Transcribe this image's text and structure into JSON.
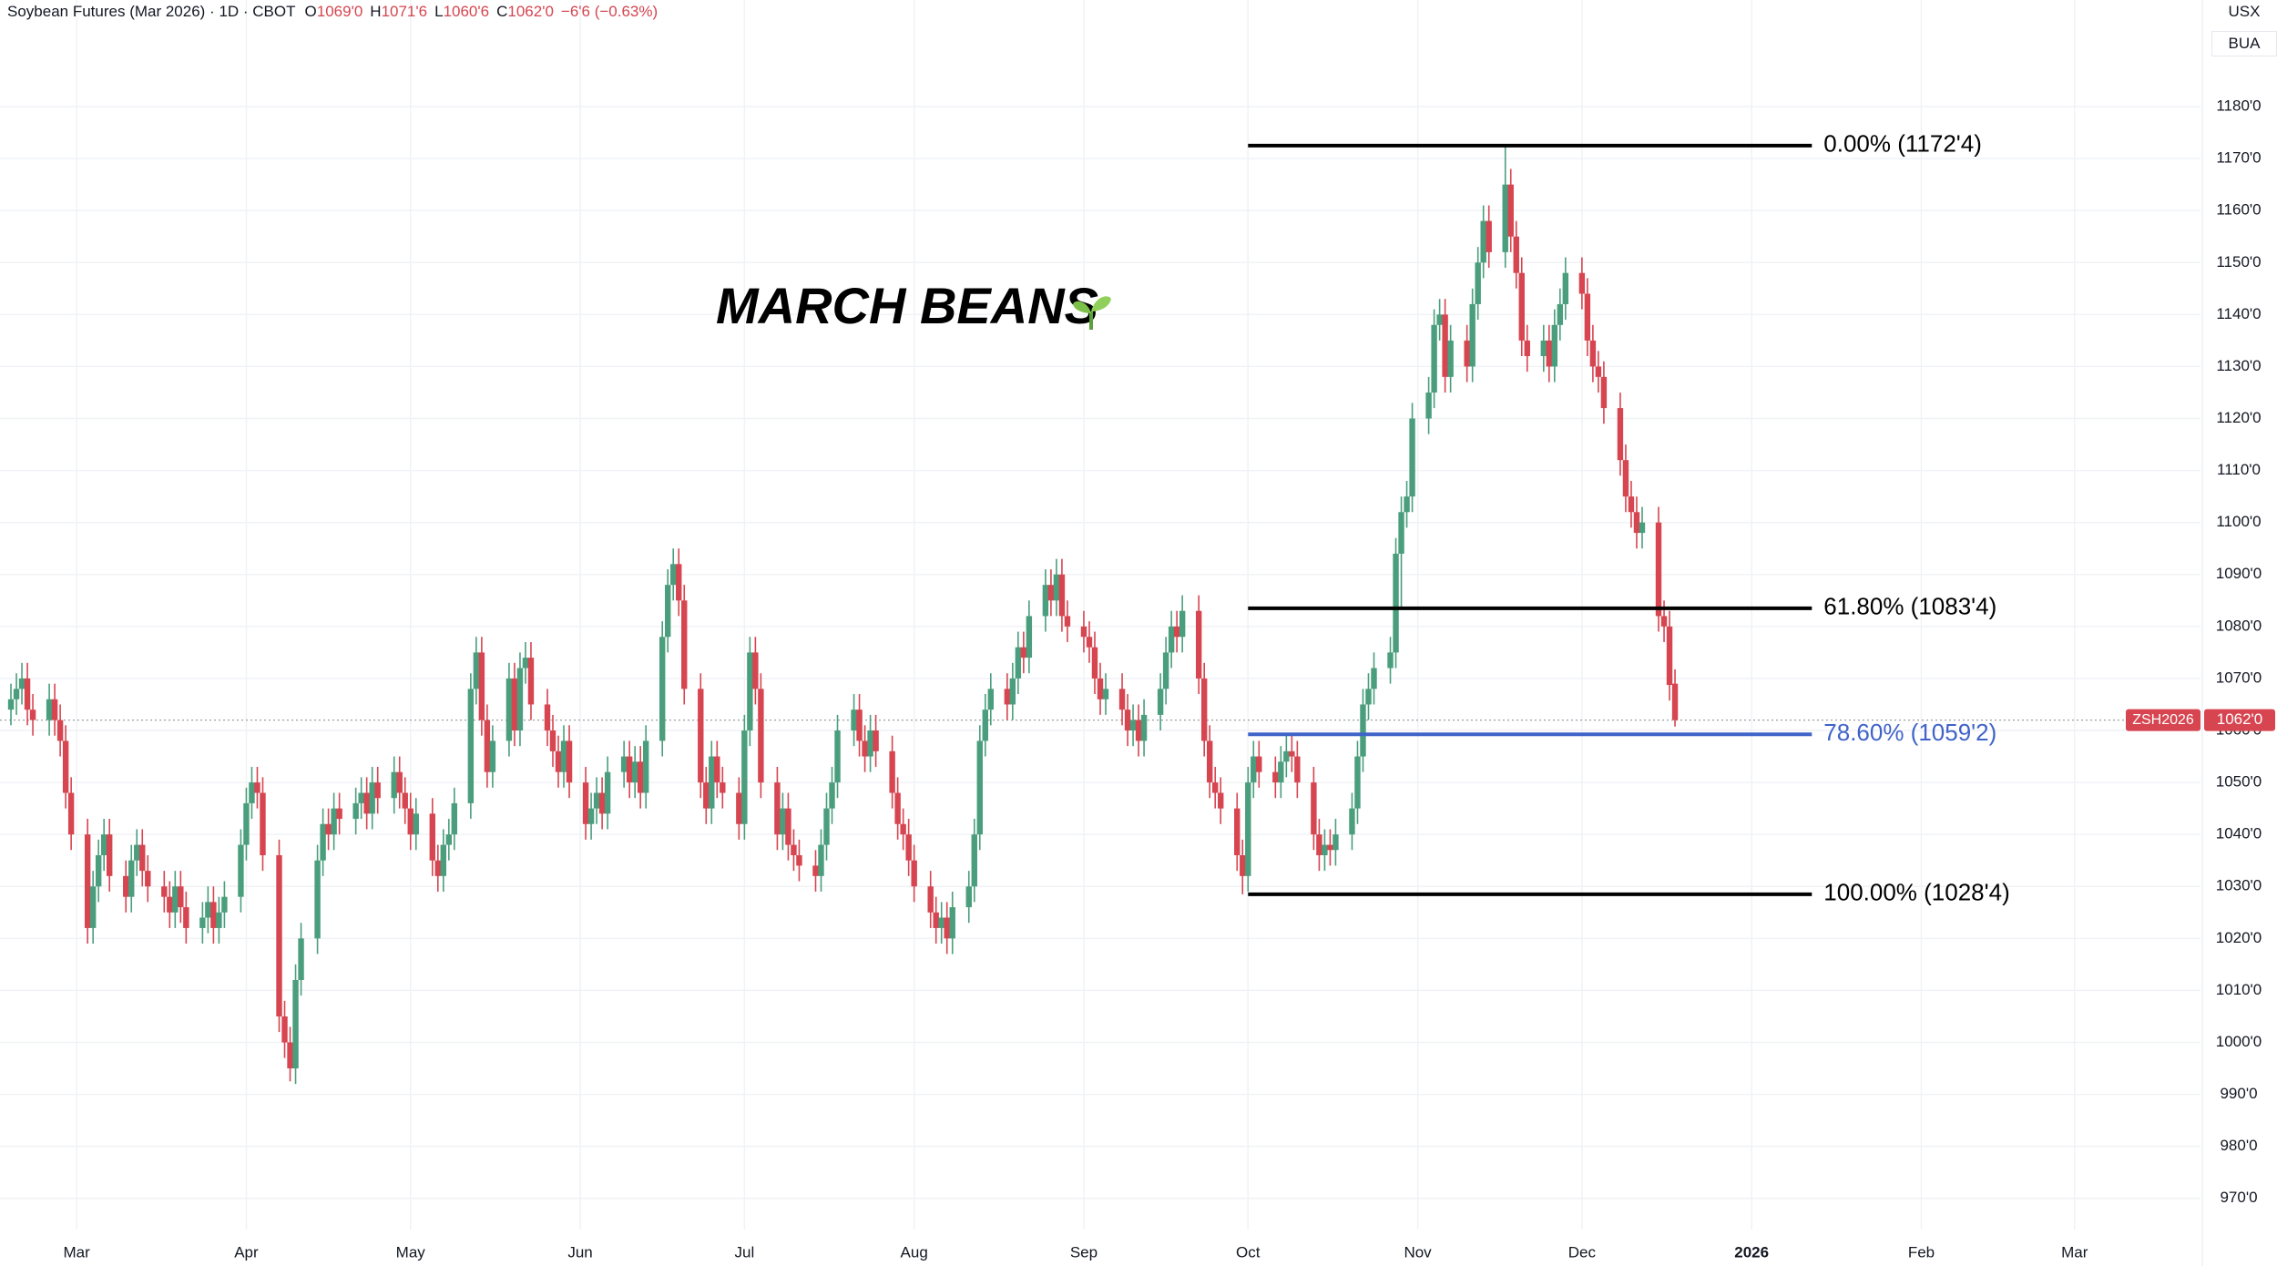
{
  "header": {
    "symbol": "Soybean Futures (Mar 2026) · 1D · CBOT",
    "ohlc": [
      {
        "key": "O",
        "value": "1069'0"
      },
      {
        "key": "H",
        "value": "1071'6"
      },
      {
        "key": "L",
        "value": "1060'6"
      },
      {
        "key": "C",
        "value": "1062'0"
      }
    ],
    "change": "−6'6 (−0.63%)",
    "currency": "USX",
    "unit": "BUA"
  },
  "chart_data": {
    "type": "candlestick",
    "title": "MARCH BEANS",
    "up_color": "#4a9e7d",
    "down_color": "#d64550",
    "grid": true,
    "xlim": [
      46,
      448
    ],
    "ylim": [
      964,
      1200.5
    ],
    "xticks": [
      {
        "value": 60,
        "label": "Mar"
      },
      {
        "value": 91,
        "label": "Apr"
      },
      {
        "value": 121,
        "label": "May"
      },
      {
        "value": 152,
        "label": "Jun"
      },
      {
        "value": 182,
        "label": "Jul"
      },
      {
        "value": 213,
        "label": "Aug"
      },
      {
        "value": 244,
        "label": "Sep"
      },
      {
        "value": 274,
        "label": "Oct"
      },
      {
        "value": 305,
        "label": "Nov"
      },
      {
        "value": 335,
        "label": "Dec"
      },
      {
        "value": 366,
        "label": "2026",
        "bold": true
      },
      {
        "value": 397,
        "label": "Feb"
      },
      {
        "value": 425,
        "label": "Mar"
      }
    ],
    "yticks": [
      {
        "value": 970,
        "label": "970'0"
      },
      {
        "value": 980,
        "label": "980'0"
      },
      {
        "value": 990,
        "label": "990'0"
      },
      {
        "value": 1000,
        "label": "1000'0"
      },
      {
        "value": 1010,
        "label": "1010'0"
      },
      {
        "value": 1020,
        "label": "1020'0"
      },
      {
        "value": 1030,
        "label": "1030'0"
      },
      {
        "value": 1040,
        "label": "1040'0"
      },
      {
        "value": 1050,
        "label": "1050'0"
      },
      {
        "value": 1060,
        "label": "1060'0"
      },
      {
        "value": 1070,
        "label": "1070'0"
      },
      {
        "value": 1080,
        "label": "1080'0"
      },
      {
        "value": 1090,
        "label": "1090'0"
      },
      {
        "value": 1100,
        "label": "1100'0"
      },
      {
        "value": 1110,
        "label": "1110'0"
      },
      {
        "value": 1120,
        "label": "1120'0"
      },
      {
        "value": 1130,
        "label": "1130'0"
      },
      {
        "value": 1140,
        "label": "1140'0"
      },
      {
        "value": 1150,
        "label": "1150'0"
      },
      {
        "value": 1160,
        "label": "1160'0"
      },
      {
        "value": 1170,
        "label": "1170'0"
      },
      {
        "value": 1180,
        "label": "1180'0"
      }
    ],
    "levels": [
      {
        "value": 1172.5,
        "label": "0.00% (1172'4)",
        "color": "#000000"
      },
      {
        "value": 1083.5,
        "label": "61.80% (1083'4)",
        "color": "#000000"
      },
      {
        "value": 1059.25,
        "label": "78.60% (1059'2)",
        "color": "#3f63c8"
      },
      {
        "value": 1028.5,
        "label": "100.00% (1028'4)",
        "color": "#000000"
      }
    ],
    "level_x": [
      274,
      377
    ],
    "last_price": {
      "value": 1062,
      "label": "1062'0",
      "symbol": "ZSH2026",
      "color": "#d64550"
    },
    "x": [
      48,
      49,
      50,
      51,
      52,
      55,
      56,
      57,
      58,
      59,
      62,
      63,
      64,
      65,
      66,
      69,
      70,
      71,
      72,
      73,
      76,
      77,
      78,
      79,
      80,
      83,
      84,
      85,
      86,
      87,
      90,
      91,
      92,
      93,
      94,
      97,
      98,
      99,
      100,
      101,
      104,
      105,
      106,
      107,
      108,
      111,
      112,
      113,
      114,
      115,
      118,
      119,
      120,
      121,
      122,
      125,
      126,
      127,
      128,
      129,
      132,
      133,
      134,
      135,
      136,
      139,
      140,
      141,
      142,
      143,
      146,
      147,
      148,
      149,
      150,
      153,
      154,
      155,
      156,
      157,
      160,
      161,
      162,
      163,
      164,
      167,
      168,
      169,
      170,
      171,
      174,
      175,
      176,
      177,
      178,
      181,
      182,
      183,
      184,
      185,
      188,
      189,
      190,
      191,
      192,
      195,
      196,
      197,
      198,
      199,
      202,
      203,
      204,
      205,
      206,
      209,
      210,
      211,
      212,
      213,
      216,
      217,
      218,
      219,
      220,
      223,
      224,
      225,
      226,
      227,
      230,
      231,
      232,
      233,
      234,
      237,
      238,
      239,
      240,
      241,
      244,
      245,
      246,
      247,
      248,
      251,
      252,
      253,
      254,
      255,
      258,
      259,
      260,
      261,
      262,
      265,
      266,
      267,
      268,
      269,
      272,
      273,
      274,
      275,
      276,
      279,
      280,
      281,
      282,
      283,
      286,
      287,
      288,
      289,
      290,
      293,
      294,
      295,
      296,
      297,
      300,
      301,
      302,
      303,
      304,
      307,
      308,
      309,
      310,
      311,
      314,
      315,
      316,
      317,
      318,
      321,
      322,
      323,
      324,
      325,
      328,
      329,
      330,
      331,
      332,
      335,
      336,
      337,
      338,
      339,
      342,
      343,
      344,
      345,
      346,
      349,
      350,
      351,
      352
    ],
    "open": [
      1064,
      1066,
      1068,
      1070,
      1064,
      1062,
      1066,
      1062,
      1058,
      1048,
      1040,
      1022,
      1030,
      1036,
      1040,
      1032,
      1028,
      1035,
      1038,
      1033,
      1030,
      1028,
      1025,
      1030,
      1026,
      1022,
      1024,
      1027,
      1022,
      1025,
      1028,
      1038,
      1046,
      1050,
      1048,
      1036,
      1005,
      1000,
      995,
      1012,
      1020,
      1035,
      1042,
      1040,
      1045,
      1043,
      1046,
      1048,
      1044,
      1050,
      1047,
      1052,
      1048,
      1045,
      1040,
      1044,
      1035,
      1032,
      1038,
      1040,
      1046,
      1068,
      1075,
      1062,
      1052,
      1058,
      1070,
      1060,
      1072,
      1074,
      1065,
      1060,
      1056,
      1052,
      1058,
      1050,
      1042,
      1045,
      1048,
      1044,
      1052,
      1055,
      1050,
      1054,
      1048,
      1058,
      1078,
      1088,
      1092,
      1085,
      1068,
      1050,
      1045,
      1055,
      1050,
      1048,
      1042,
      1060,
      1075,
      1068,
      1050,
      1040,
      1045,
      1038,
      1036,
      1034,
      1032,
      1038,
      1045,
      1050,
      1060,
      1064,
      1058,
      1055,
      1060,
      1056,
      1048,
      1042,
      1040,
      1035,
      1030,
      1025,
      1022,
      1024,
      1020,
      1026,
      1030,
      1040,
      1058,
      1064,
      1068,
      1065,
      1070,
      1076,
      1074,
      1082,
      1088,
      1085,
      1090,
      1082,
      1080,
      1078,
      1076,
      1070,
      1066,
      1068,
      1064,
      1060,
      1062,
      1058,
      1063,
      1068,
      1075,
      1080,
      1078,
      1083,
      1070,
      1058,
      1050,
      1048,
      1045,
      1036,
      1032,
      1050,
      1055,
      1052,
      1050,
      1054,
      1056,
      1055,
      1050,
      1040,
      1036,
      1038,
      1037,
      1040,
      1045,
      1055,
      1065,
      1068,
      1072,
      1075,
      1094,
      1102,
      1105,
      1120,
      1125,
      1138,
      1140,
      1128,
      1135,
      1130,
      1142,
      1150,
      1158,
      1152,
      1165,
      1155,
      1148,
      1135,
      1132,
      1135,
      1130,
      1138,
      1142,
      1148,
      1144,
      1135,
      1130,
      1128,
      1122,
      1112,
      1105,
      1102,
      1098,
      1100,
      1082,
      1080,
      1069
    ],
    "high": [
      1069,
      1071,
      1073,
      1073,
      1067,
      1069,
      1069,
      1065,
      1061,
      1051,
      1043,
      1033,
      1039,
      1043,
      1043,
      1035,
      1038,
      1041,
      1041,
      1036,
      1033,
      1031,
      1033,
      1033,
      1029,
      1027,
      1030,
      1030,
      1028,
      1031,
      1041,
      1049,
      1053,
      1053,
      1051,
      1039,
      1008,
      1003,
      1015,
      1023,
      1038,
      1045,
      1045,
      1048,
      1048,
      1049,
      1051,
      1051,
      1053,
      1053,
      1055,
      1055,
      1051,
      1048,
      1047,
      1047,
      1038,
      1041,
      1043,
      1049,
      1071,
      1078,
      1078,
      1065,
      1061,
      1073,
      1073,
      1075,
      1077,
      1077,
      1068,
      1063,
      1059,
      1061,
      1061,
      1053,
      1048,
      1051,
      1051,
      1055,
      1058,
      1058,
      1057,
      1057,
      1061,
      1081,
      1091,
      1095,
      1095,
      1088,
      1071,
      1053,
      1058,
      1058,
      1053,
      1051,
      1063,
      1078,
      1078,
      1071,
      1053,
      1048,
      1048,
      1041,
      1039,
      1037,
      1041,
      1048,
      1053,
      1063,
      1067,
      1067,
      1061,
      1063,
      1063,
      1059,
      1051,
      1045,
      1043,
      1038,
      1033,
      1028,
      1027,
      1027,
      1029,
      1033,
      1043,
      1061,
      1067,
      1071,
      1071,
      1073,
      1079,
      1079,
      1085,
      1091,
      1091,
      1093,
      1093,
      1085,
      1083,
      1081,
      1079,
      1073,
      1071,
      1071,
      1067,
      1065,
      1065,
      1066,
      1071,
      1078,
      1083,
      1083,
      1086,
      1086,
      1073,
      1061,
      1053,
      1051,
      1048,
      1039,
      1053,
      1058,
      1058,
      1055,
      1057,
      1059,
      1059,
      1058,
      1053,
      1043,
      1041,
      1041,
      1043,
      1048,
      1058,
      1068,
      1071,
      1075,
      1078,
      1097,
      1105,
      1108,
      1123,
      1128,
      1141,
      1143,
      1143,
      1138,
      1138,
      1145,
      1153,
      1161,
      1161,
      1172.5,
      1168,
      1158,
      1151,
      1138,
      1138,
      1138,
      1141,
      1145,
      1151,
      1151,
      1147,
      1138,
      1133,
      1131,
      1125,
      1115,
      1108,
      1105,
      1103,
      1103,
      1085,
      1083,
      1071.75
    ],
    "low": [
      1061,
      1063,
      1065,
      1061,
      1059,
      1059,
      1059,
      1055,
      1045,
      1037,
      1019,
      1019,
      1027,
      1033,
      1029,
      1025,
      1025,
      1032,
      1030,
      1027,
      1025,
      1022,
      1022,
      1023,
      1019,
      1019,
      1021,
      1019,
      1019,
      1022,
      1025,
      1035,
      1043,
      1045,
      1033,
      1002,
      997,
      992.5,
      992,
      1009,
      1017,
      1032,
      1037,
      1037,
      1040,
      1040,
      1043,
      1041,
      1041,
      1044,
      1044,
      1045,
      1042,
      1037,
      1037,
      1032,
      1029,
      1029,
      1035,
      1037,
      1043,
      1065,
      1059,
      1049,
      1049,
      1055,
      1057,
      1057,
      1069,
      1062,
      1057,
      1053,
      1049,
      1049,
      1047,
      1039,
      1039,
      1042,
      1041,
      1041,
      1049,
      1047,
      1047,
      1045,
      1045,
      1055,
      1075,
      1085,
      1082,
      1065,
      1047,
      1042,
      1042,
      1047,
      1045,
      1039,
      1039,
      1057,
      1065,
      1047,
      1037,
      1037,
      1035,
      1033,
      1031,
      1029,
      1029,
      1035,
      1042,
      1047,
      1057,
      1055,
      1052,
      1052,
      1053,
      1045,
      1039,
      1037,
      1032,
      1027,
      1022,
      1019,
      1019,
      1017,
      1017,
      1023,
      1027,
      1037,
      1055,
      1061,
      1062,
      1062,
      1067,
      1071,
      1071,
      1079,
      1082,
      1082,
      1079,
      1077,
      1075,
      1073,
      1067,
      1063,
      1063,
      1061,
      1057,
      1057,
      1055,
      1055,
      1060,
      1065,
      1072,
      1075,
      1075,
      1067,
      1055,
      1047,
      1045,
      1042,
      1033,
      1028.5,
      1029,
      1047,
      1049,
      1047,
      1047,
      1051,
      1052,
      1047,
      1037,
      1033,
      1033,
      1034,
      1034,
      1037,
      1042,
      1052,
      1062,
      1065,
      1069,
      1072,
      1083.5,
      1099,
      1102,
      1117,
      1122,
      1135,
      1125,
      1125,
      1127,
      1127,
      1139,
      1147,
      1149,
      1149,
      1152,
      1145,
      1132,
      1129,
      1129,
      1127,
      1127,
      1135,
      1139,
      1141,
      1132,
      1127,
      1125,
      1119,
      1109,
      1102,
      1099,
      1095,
      1095,
      1079,
      1077,
      1065.75,
      1060.75
    ],
    "close": [
      1066,
      1068,
      1070,
      1064,
      1062,
      1066,
      1062,
      1058,
      1048,
      1040,
      1022,
      1030,
      1036,
      1040,
      1032,
      1028,
      1035,
      1038,
      1033,
      1030,
      1028,
      1025,
      1030,
      1026,
      1022,
      1024,
      1027,
      1022,
      1025,
      1028,
      1038,
      1046,
      1050,
      1048,
      1036,
      1005,
      1000,
      995,
      1012,
      1020,
      1035,
      1042,
      1040,
      1045,
      1043,
      1046,
      1048,
      1044,
      1050,
      1047,
      1052,
      1048,
      1045,
      1040,
      1044,
      1035,
      1032,
      1038,
      1040,
      1046,
      1068,
      1075,
      1062,
      1052,
      1058,
      1070,
      1060,
      1072,
      1074,
      1065,
      1060,
      1056,
      1052,
      1058,
      1050,
      1042,
      1045,
      1048,
      1044,
      1052,
      1055,
      1050,
      1054,
      1048,
      1058,
      1078,
      1088,
      1092,
      1085,
      1068,
      1050,
      1045,
      1055,
      1050,
      1048,
      1042,
      1060,
      1075,
      1068,
      1050,
      1040,
      1045,
      1038,
      1036,
      1034,
      1032,
      1038,
      1045,
      1050,
      1060,
      1064,
      1058,
      1055,
      1060,
      1056,
      1048,
      1042,
      1040,
      1035,
      1030,
      1025,
      1022,
      1024,
      1020,
      1026,
      1030,
      1040,
      1058,
      1064,
      1068,
      1065,
      1070,
      1076,
      1074,
      1082,
      1088,
      1085,
      1090,
      1082,
      1080,
      1078,
      1076,
      1070,
      1066,
      1068,
      1064,
      1060,
      1062,
      1058,
      1063,
      1068,
      1075,
      1080,
      1078,
      1083,
      1070,
      1058,
      1050,
      1048,
      1045,
      1036,
      1032,
      1050,
      1055,
      1052,
      1050,
      1054,
      1056,
      1055,
      1050,
      1040,
      1036,
      1038,
      1037,
      1040,
      1045,
      1055,
      1065,
      1068,
      1072,
      1075,
      1094,
      1102,
      1105,
      1120,
      1125,
      1138,
      1140,
      1128,
      1135,
      1130,
      1142,
      1150,
      1158,
      1152,
      1165,
      1155,
      1148,
      1135,
      1132,
      1135,
      1130,
      1138,
      1142,
      1148,
      1144,
      1135,
      1130,
      1128,
      1122,
      1112,
      1105,
      1102,
      1098,
      1100,
      1082,
      1080,
      1068.75,
      1062
    ]
  }
}
